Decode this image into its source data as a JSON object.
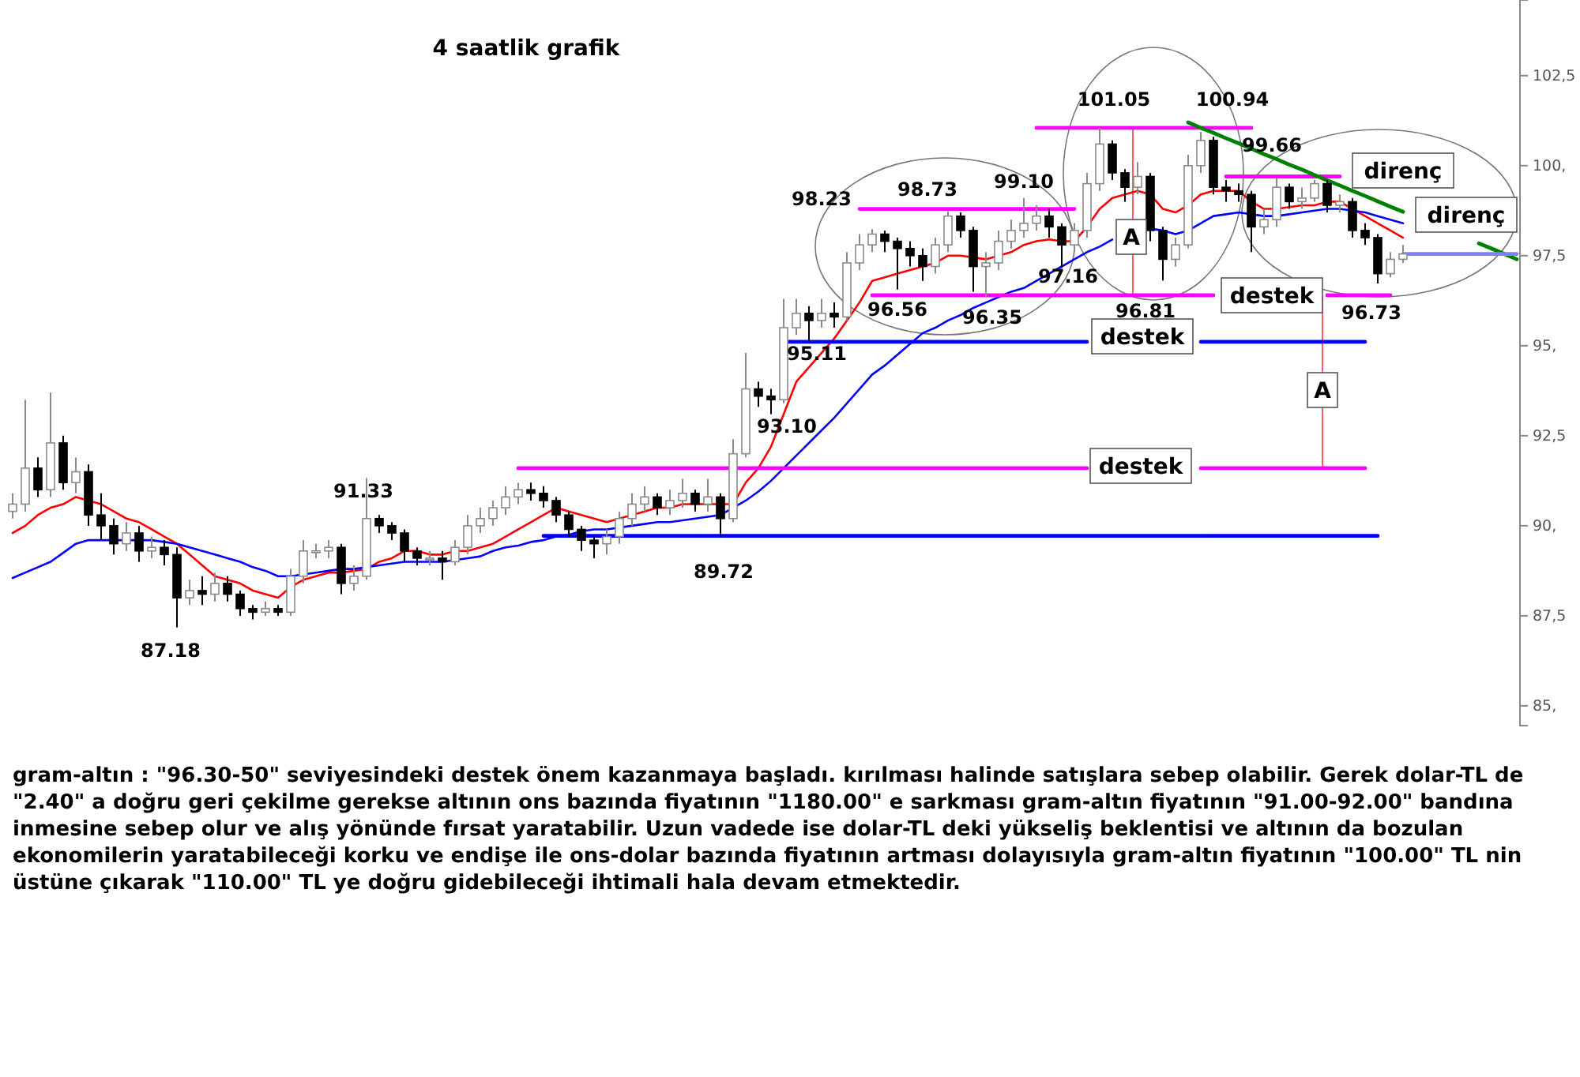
{
  "chart_data": {
    "type": "candlestick",
    "title": "4 saatlik grafik",
    "categories": [
      null,
      null,
      null,
      null,
      null,
      null,
      null,
      null,
      null,
      null,
      null,
      null,
      null,
      null,
      null,
      null,
      null,
      null,
      null,
      null,
      null,
      null,
      null,
      null,
      null,
      null,
      null,
      null,
      null,
      null,
      null,
      null,
      null,
      null,
      null,
      null,
      null,
      null,
      null,
      null,
      null,
      null,
      null,
      null,
      null,
      null,
      null,
      null,
      null,
      null,
      null,
      null,
      null,
      null,
      null,
      null,
      null,
      null,
      null,
      null,
      null,
      null,
      null,
      null,
      null,
      null,
      null,
      null,
      null,
      null,
      null,
      null,
      null,
      null,
      null,
      null,
      null,
      null,
      null,
      null,
      null,
      null,
      null,
      null,
      null,
      null,
      null,
      null,
      null,
      null,
      null,
      null,
      null,
      null,
      null,
      null,
      null,
      null,
      null,
      null,
      null,
      null,
      null,
      null,
      null,
      null,
      null,
      null,
      null,
      null,
      null,
      null,
      null,
      null,
      null,
      null,
      null,
      null,
      null,
      null
    ],
    "ohlc": [
      [
        90.4,
        90.9,
        90.2,
        90.6
      ],
      [
        90.6,
        93.5,
        90.4,
        91.6
      ],
      [
        91.6,
        91.9,
        90.8,
        91.0
      ],
      [
        91.0,
        93.7,
        90.8,
        92.3
      ],
      [
        92.3,
        92.5,
        91.0,
        91.2
      ],
      [
        91.2,
        91.9,
        90.9,
        91.5
      ],
      [
        91.5,
        91.7,
        90.0,
        90.3
      ],
      [
        90.3,
        90.9,
        89.6,
        90.0
      ],
      [
        90.0,
        90.2,
        89.2,
        89.5
      ],
      [
        89.5,
        90.1,
        89.3,
        89.8
      ],
      [
        89.8,
        90.0,
        89.0,
        89.3
      ],
      [
        89.3,
        89.7,
        89.1,
        89.4
      ],
      [
        89.4,
        89.6,
        88.9,
        89.2
      ],
      [
        89.2,
        89.4,
        87.18,
        88.0
      ],
      [
        88.0,
        88.5,
        87.8,
        88.2
      ],
      [
        88.2,
        88.6,
        87.8,
        88.1
      ],
      [
        88.1,
        88.7,
        87.9,
        88.4
      ],
      [
        88.4,
        88.6,
        87.9,
        88.1
      ],
      [
        88.1,
        88.2,
        87.5,
        87.7
      ],
      [
        87.7,
        87.8,
        87.4,
        87.6
      ],
      [
        87.6,
        87.9,
        87.5,
        87.7
      ],
      [
        87.7,
        87.8,
        87.5,
        87.6
      ],
      [
        87.6,
        88.8,
        87.5,
        88.6
      ],
      [
        88.6,
        89.6,
        88.4,
        89.3
      ],
      [
        89.3,
        89.5,
        89.1,
        89.3
      ],
      [
        89.3,
        89.6,
        89.1,
        89.4
      ],
      [
        89.4,
        89.5,
        88.1,
        88.4
      ],
      [
        88.4,
        88.9,
        88.2,
        88.6
      ],
      [
        88.6,
        91.33,
        88.5,
        90.2
      ],
      [
        90.2,
        90.3,
        89.8,
        90.0
      ],
      [
        90.0,
        90.1,
        89.6,
        89.8
      ],
      [
        89.8,
        89.9,
        89.0,
        89.3
      ],
      [
        89.3,
        89.4,
        88.9,
        89.1
      ],
      [
        89.1,
        89.3,
        88.9,
        89.1
      ],
      [
        89.1,
        89.3,
        88.5,
        89.0
      ],
      [
        89.0,
        89.6,
        88.9,
        89.4
      ],
      [
        89.4,
        90.3,
        89.2,
        90.0
      ],
      [
        90.0,
        90.5,
        89.8,
        90.2
      ],
      [
        90.2,
        90.7,
        90.0,
        90.5
      ],
      [
        90.5,
        91.1,
        90.3,
        90.8
      ],
      [
        90.8,
        91.2,
        90.6,
        91.0
      ],
      [
        91.0,
        91.2,
        90.7,
        90.9
      ],
      [
        90.9,
        91.1,
        90.5,
        90.7
      ],
      [
        90.7,
        90.8,
        90.1,
        90.3
      ],
      [
        90.3,
        90.4,
        89.7,
        89.9
      ],
      [
        89.9,
        90.0,
        89.3,
        89.6
      ],
      [
        89.6,
        89.7,
        89.1,
        89.5
      ],
      [
        89.5,
        89.9,
        89.2,
        89.7
      ],
      [
        89.7,
        90.4,
        89.5,
        90.2
      ],
      [
        90.2,
        90.9,
        90.0,
        90.6
      ],
      [
        90.6,
        91.1,
        90.4,
        90.8
      ],
      [
        90.8,
        90.9,
        90.3,
        90.5
      ],
      [
        90.5,
        91.0,
        90.3,
        90.7
      ],
      [
        90.7,
        91.3,
        90.5,
        90.9
      ],
      [
        90.9,
        91.0,
        90.4,
        90.6
      ],
      [
        90.6,
        91.3,
        90.4,
        90.8
      ],
      [
        90.8,
        90.9,
        89.72,
        90.2
      ],
      [
        90.2,
        92.4,
        90.1,
        92.0
      ],
      [
        92.0,
        94.8,
        91.9,
        93.8
      ],
      [
        93.8,
        94.0,
        93.3,
        93.6
      ],
      [
        93.6,
        93.8,
        93.1,
        93.5
      ],
      [
        93.5,
        96.3,
        93.4,
        95.5
      ],
      [
        95.5,
        96.3,
        95.3,
        95.9
      ],
      [
        95.9,
        96.1,
        95.11,
        95.7
      ],
      [
        95.7,
        96.3,
        95.5,
        95.9
      ],
      [
        95.9,
        96.2,
        95.5,
        95.8
      ],
      [
        95.8,
        97.6,
        95.7,
        97.3
      ],
      [
        97.3,
        98.1,
        97.1,
        97.8
      ],
      [
        97.8,
        98.23,
        97.6,
        98.1
      ],
      [
        98.1,
        98.2,
        97.6,
        97.9
      ],
      [
        97.9,
        98.0,
        96.56,
        97.7
      ],
      [
        97.7,
        97.9,
        97.2,
        97.5
      ],
      [
        97.5,
        97.7,
        96.8,
        97.2
      ],
      [
        97.2,
        98.0,
        97.0,
        97.8
      ],
      [
        97.8,
        98.73,
        97.6,
        98.6
      ],
      [
        98.6,
        98.7,
        98.0,
        98.2
      ],
      [
        98.2,
        98.3,
        96.5,
        97.2
      ],
      [
        97.2,
        97.6,
        96.35,
        97.3
      ],
      [
        97.3,
        98.2,
        97.1,
        97.9
      ],
      [
        97.9,
        98.5,
        97.7,
        98.2
      ],
      [
        98.2,
        99.1,
        98.0,
        98.4
      ],
      [
        98.4,
        98.9,
        98.2,
        98.6
      ],
      [
        98.6,
        98.8,
        98.0,
        98.3
      ],
      [
        98.3,
        98.4,
        97.16,
        97.8
      ],
      [
        97.8,
        98.4,
        97.6,
        98.2
      ],
      [
        98.2,
        99.8,
        98.0,
        99.5
      ],
      [
        99.5,
        101.05,
        99.3,
        100.6
      ],
      [
        100.6,
        100.7,
        99.6,
        99.8
      ],
      [
        99.8,
        99.9,
        99.0,
        99.4
      ],
      [
        99.4,
        100.1,
        99.2,
        99.7
      ],
      [
        99.7,
        99.8,
        97.9,
        98.2
      ],
      [
        98.2,
        98.3,
        96.81,
        97.4
      ],
      [
        97.4,
        98.0,
        97.2,
        97.8
      ],
      [
        97.8,
        100.3,
        97.7,
        100.0
      ],
      [
        100.0,
        100.94,
        99.8,
        100.7
      ],
      [
        100.7,
        100.8,
        99.2,
        99.4
      ],
      [
        99.4,
        99.6,
        99.0,
        99.3
      ],
      [
        99.3,
        99.5,
        99.0,
        99.2
      ],
      [
        99.2,
        99.3,
        97.6,
        98.3
      ],
      [
        98.3,
        98.8,
        98.1,
        98.5
      ],
      [
        98.5,
        99.66,
        98.3,
        99.4
      ],
      [
        99.4,
        99.5,
        98.8,
        99.0
      ],
      [
        99.0,
        99.4,
        98.8,
        99.1
      ],
      [
        99.1,
        99.6,
        99.0,
        99.5
      ],
      [
        99.5,
        99.6,
        98.7,
        98.9
      ],
      [
        98.9,
        99.2,
        98.7,
        99.0
      ],
      [
        99.0,
        99.1,
        98.0,
        98.2
      ],
      [
        98.2,
        98.4,
        97.8,
        98.0
      ],
      [
        98.0,
        98.1,
        96.73,
        97.0
      ],
      [
        97.0,
        97.6,
        96.9,
        97.4
      ],
      [
        97.4,
        97.8,
        97.3,
        97.55
      ],
      null,
      null,
      null,
      null,
      null,
      null,
      null,
      null,
      null
    ],
    "series": [
      {
        "type": "line",
        "color": "#ff0000",
        "values": [
          89.8,
          90.0,
          90.3,
          90.5,
          90.6,
          90.8,
          90.7,
          90.6,
          90.4,
          90.2,
          90.1,
          89.9,
          89.7,
          89.5,
          89.2,
          88.9,
          88.6,
          88.5,
          88.4,
          88.2,
          88.1,
          88.0,
          88.3,
          88.5,
          88.6,
          88.7,
          88.7,
          88.75,
          88.8,
          89.0,
          89.1,
          89.3,
          89.3,
          89.2,
          89.2,
          89.3,
          89.3,
          89.4,
          89.5,
          89.7,
          89.9,
          90.1,
          90.3,
          90.5,
          90.4,
          90.3,
          90.2,
          90.1,
          90.2,
          90.3,
          90.4,
          90.5,
          90.5,
          90.6,
          90.6,
          90.6,
          90.6,
          90.6,
          91.2,
          91.6,
          92.2,
          93.1,
          94.0,
          94.4,
          94.8,
          95.2,
          95.7,
          96.2,
          96.8,
          96.9,
          97.0,
          97.1,
          97.2,
          97.3,
          97.5,
          97.5,
          97.45,
          97.4,
          97.5,
          97.6,
          97.8,
          97.9,
          97.95,
          97.9,
          97.9,
          98.3,
          98.8,
          99.1,
          99.2,
          99.3,
          99.2,
          98.8,
          98.7,
          98.9,
          99.2,
          99.3,
          99.3,
          99.3,
          99.0,
          98.8,
          98.8,
          98.85,
          98.9,
          98.9,
          99.0,
          99.0,
          98.8,
          98.6,
          98.4,
          98.2,
          98.0,
          null,
          null,
          null,
          null,
          null,
          null,
          null,
          null,
          null
        ]
      },
      {
        "type": "line",
        "color": "#0000ff",
        "values": [
          88.55,
          88.7,
          88.85,
          89.0,
          89.25,
          89.5,
          89.6,
          89.6,
          89.6,
          89.6,
          89.6,
          89.6,
          89.55,
          89.5,
          89.4,
          89.3,
          89.2,
          89.1,
          89.0,
          88.85,
          88.75,
          88.6,
          88.6,
          88.65,
          88.7,
          88.75,
          88.8,
          88.8,
          88.85,
          88.9,
          88.95,
          89.0,
          89.0,
          89.0,
          89.0,
          89.05,
          89.1,
          89.15,
          89.3,
          89.4,
          89.45,
          89.55,
          89.6,
          89.7,
          89.75,
          89.85,
          89.9,
          89.9,
          89.95,
          90.0,
          90.05,
          90.1,
          90.1,
          90.15,
          90.2,
          90.25,
          90.3,
          90.5,
          90.7,
          90.95,
          91.25,
          91.6,
          91.95,
          92.3,
          92.65,
          93.0,
          93.4,
          93.8,
          94.2,
          94.45,
          94.75,
          95.05,
          95.35,
          95.5,
          95.7,
          95.85,
          96.05,
          96.2,
          96.35,
          96.5,
          96.6,
          96.8,
          97.0,
          97.2,
          97.4,
          97.6,
          97.75,
          97.95,
          null,
          null,
          98.25,
          98.2,
          98.1,
          98.2,
          98.4,
          98.6,
          98.65,
          98.7,
          98.65,
          98.6,
          98.6,
          98.65,
          98.7,
          98.75,
          98.8,
          98.8,
          98.75,
          98.7,
          98.6,
          98.5,
          98.4,
          null,
          null,
          null,
          null,
          null,
          null,
          null,
          null,
          null
        ]
      },
      {
        "type": "line",
        "color": "#ff00ff",
        "values": [
          null,
          null,
          null,
          null,
          null,
          null,
          null,
          null,
          null,
          null,
          null,
          null,
          null,
          null,
          null,
          null,
          null,
          null,
          null,
          null,
          null,
          null,
          null,
          null,
          null,
          null,
          null,
          null,
          null,
          null,
          null,
          null,
          null,
          null,
          null,
          null,
          null,
          null,
          null,
          null,
          91.6,
          91.6,
          91.6,
          91.6,
          91.6,
          91.6,
          91.6,
          91.6,
          91.6,
          91.6,
          91.6,
          91.6,
          91.6,
          91.6,
          91.6,
          91.6,
          91.6,
          91.6,
          91.6,
          91.6,
          91.6,
          91.6,
          91.6,
          91.6,
          91.6,
          91.6,
          91.6,
          91.6,
          91.6,
          91.6,
          91.6,
          91.6,
          91.6,
          91.6,
          91.6,
          91.6,
          91.6,
          91.6,
          91.6,
          91.6,
          91.6,
          91.6,
          91.6,
          91.6,
          91.6,
          91.6,
          null,
          null,
          null,
          null,
          null,
          null,
          null,
          null,
          91.6,
          91.6,
          91.6,
          91.6,
          91.6,
          91.6,
          91.6,
          91.6,
          91.6,
          91.6,
          91.6,
          91.6,
          91.6,
          91.6,
          null,
          null,
          null,
          null,
          null,
          null,
          null,
          null,
          null,
          null,
          null,
          null
        ]
      },
      {
        "type": "line",
        "color": "#0000ff",
        "values": [
          null,
          null,
          null,
          null,
          null,
          null,
          null,
          null,
          null,
          null,
          null,
          null,
          null,
          null,
          null,
          null,
          null,
          null,
          null,
          null,
          null,
          null,
          null,
          null,
          null,
          null,
          null,
          null,
          null,
          null,
          null,
          null,
          null,
          null,
          null,
          null,
          null,
          null,
          null,
          null,
          null,
          null,
          89.72,
          89.72,
          89.72,
          89.72,
          89.72,
          89.72,
          89.72,
          89.72,
          89.72,
          89.72,
          89.72,
          89.72,
          89.72,
          89.72,
          89.72,
          89.72,
          89.72,
          89.72,
          89.72,
          89.72,
          89.72,
          89.72,
          89.72,
          89.72,
          89.72,
          89.72,
          89.72,
          89.72,
          89.72,
          89.72,
          89.72,
          89.72,
          89.72,
          89.72,
          89.72,
          89.72,
          89.72,
          89.72,
          89.72,
          89.72,
          89.72,
          89.72,
          89.72,
          89.72,
          89.72,
          89.72,
          89.72,
          89.72,
          89.72,
          89.72,
          89.72,
          89.72,
          89.72,
          89.72,
          89.72,
          89.72,
          89.72,
          89.72,
          89.72,
          89.72,
          89.72,
          89.72,
          89.72,
          89.72,
          89.72,
          89.72,
          89.72,
          null,
          null,
          null,
          null,
          null,
          null,
          null,
          null,
          null,
          null,
          null
        ]
      },
      {
        "type": "line",
        "color": "#0000ff",
        "values": [
          null,
          null,
          null,
          null,
          null,
          null,
          null,
          null,
          null,
          null,
          null,
          null,
          null,
          null,
          null,
          null,
          null,
          null,
          null,
          null,
          null,
          null,
          null,
          null,
          null,
          null,
          null,
          null,
          null,
          null,
          null,
          null,
          null,
          null,
          null,
          null,
          null,
          null,
          null,
          null,
          null,
          null,
          null,
          null,
          null,
          null,
          null,
          null,
          null,
          null,
          null,
          null,
          null,
          null,
          null,
          null,
          null,
          null,
          null,
          null,
          null,
          95.11,
          95.11,
          95.11,
          95.11,
          95.11,
          95.11,
          95.11,
          95.11,
          95.11,
          95.11,
          95.11,
          95.11,
          95.11,
          95.11,
          95.11,
          95.11,
          95.11,
          95.11,
          95.11,
          95.11,
          95.11,
          95.11,
          95.11,
          95.11,
          95.11,
          null,
          null,
          null,
          null,
          null,
          null,
          null,
          null,
          95.11,
          95.11,
          95.11,
          95.11,
          95.11,
          95.11,
          95.11,
          95.11,
          95.11,
          95.11,
          95.11,
          95.11,
          95.11,
          95.11,
          null,
          null,
          null,
          null,
          null,
          null,
          null,
          null,
          null,
          null,
          null,
          null
        ]
      },
      {
        "type": "line",
        "color": "#ff00ff",
        "values": [
          null,
          null,
          null,
          null,
          null,
          null,
          null,
          null,
          null,
          null,
          null,
          null,
          null,
          null,
          null,
          null,
          null,
          null,
          null,
          null,
          null,
          null,
          null,
          null,
          null,
          null,
          null,
          null,
          null,
          null,
          null,
          null,
          null,
          null,
          null,
          null,
          null,
          null,
          null,
          null,
          null,
          null,
          null,
          null,
          null,
          null,
          null,
          null,
          null,
          null,
          null,
          null,
          null,
          null,
          null,
          null,
          null,
          null,
          null,
          null,
          null,
          null,
          null,
          null,
          null,
          null,
          null,
          null,
          96.4,
          96.4,
          96.4,
          96.4,
          96.4,
          96.4,
          96.4,
          96.4,
          96.4,
          96.4,
          96.4,
          96.4,
          96.4,
          96.4,
          96.4,
          96.4,
          96.4,
          96.4,
          96.4,
          96.4,
          96.4,
          96.4,
          96.4,
          96.4,
          96.4,
          96.4,
          96.4,
          96.4,
          null,
          null,
          null,
          null,
          null,
          null,
          null,
          null,
          96.4,
          96.4,
          96.4,
          96.4,
          96.4,
          96.4,
          null,
          null,
          null,
          null,
          null,
          null,
          null,
          null,
          null,
          null
        ]
      },
      {
        "type": "line",
        "color": "#ff00ff",
        "values": [
          null,
          null,
          null,
          null,
          null,
          null,
          null,
          null,
          null,
          null,
          null,
          null,
          null,
          null,
          null,
          null,
          null,
          null,
          null,
          null,
          null,
          null,
          null,
          null,
          null,
          null,
          null,
          null,
          null,
          null,
          null,
          null,
          null,
          null,
          null,
          null,
          null,
          null,
          null,
          null,
          null,
          null,
          null,
          null,
          null,
          null,
          null,
          null,
          null,
          null,
          null,
          null,
          null,
          null,
          null,
          null,
          null,
          null,
          null,
          null,
          null,
          null,
          null,
          null,
          null,
          null,
          null,
          98.8,
          98.8,
          98.8,
          98.8,
          98.8,
          98.8,
          98.8,
          98.8,
          98.8,
          98.8,
          98.8,
          98.8,
          98.8,
          98.8,
          98.8,
          98.8,
          98.8,
          98.8,
          null,
          null,
          null,
          null,
          null,
          null,
          null,
          null,
          null,
          null,
          null,
          null,
          null,
          null,
          null,
          null,
          null,
          null,
          null,
          null,
          null,
          null,
          null,
          null,
          null,
          null,
          null,
          null,
          null,
          null,
          null,
          null,
          null,
          null,
          null
        ]
      },
      {
        "type": "line",
        "color": "#ff00ff",
        "values": [
          null,
          null,
          null,
          null,
          null,
          null,
          null,
          null,
          null,
          null,
          null,
          null,
          null,
          null,
          null,
          null,
          null,
          null,
          null,
          null,
          null,
          null,
          null,
          null,
          null,
          null,
          null,
          null,
          null,
          null,
          null,
          null,
          null,
          null,
          null,
          null,
          null,
          null,
          null,
          null,
          null,
          null,
          null,
          null,
          null,
          null,
          null,
          null,
          null,
          null,
          null,
          null,
          null,
          null,
          null,
          null,
          null,
          null,
          null,
          null,
          null,
          null,
          null,
          null,
          null,
          null,
          null,
          null,
          null,
          null,
          null,
          null,
          null,
          null,
          null,
          null,
          null,
          null,
          null,
          null,
          null,
          101.05,
          101.05,
          101.05,
          101.05,
          101.05,
          101.05,
          101.05,
          101.05,
          101.05,
          101.05,
          101.05,
          101.05,
          101.05,
          101.05,
          101.05,
          101.05,
          101.05,
          101.05,
          null,
          null,
          null,
          null,
          null,
          null,
          null,
          null,
          null,
          null,
          null,
          null,
          null,
          null,
          null,
          null,
          null,
          null,
          null,
          null,
          null
        ]
      },
      {
        "type": "line",
        "color": "#ff00ff",
        "values": [
          null,
          null,
          null,
          null,
          null,
          null,
          null,
          null,
          null,
          null,
          null,
          null,
          null,
          null,
          null,
          null,
          null,
          null,
          null,
          null,
          null,
          null,
          null,
          null,
          null,
          null,
          null,
          null,
          null,
          null,
          null,
          null,
          null,
          null,
          null,
          null,
          null,
          null,
          null,
          null,
          null,
          null,
          null,
          null,
          null,
          null,
          null,
          null,
          null,
          null,
          null,
          null,
          null,
          null,
          null,
          null,
          null,
          null,
          null,
          null,
          null,
          null,
          null,
          null,
          null,
          null,
          null,
          null,
          null,
          null,
          null,
          null,
          null,
          null,
          null,
          null,
          null,
          null,
          null,
          null,
          null,
          null,
          null,
          null,
          null,
          null,
          null,
          null,
          null,
          null,
          null,
          null,
          null,
          null,
          null,
          null,
          99.7,
          99.7,
          99.7,
          99.7,
          99.7,
          99.7,
          99.7,
          99.7,
          99.7,
          99.7,
          null,
          null,
          null,
          null,
          null,
          null,
          null,
          null,
          null,
          null,
          null,
          null,
          null,
          null
        ]
      },
      {
        "type": "line",
        "color": "#008000",
        "values": [
          null,
          null,
          null,
          null,
          null,
          null,
          null,
          null,
          null,
          null,
          null,
          null,
          null,
          null,
          null,
          null,
          null,
          null,
          null,
          null,
          null,
          null,
          null,
          null,
          null,
          null,
          null,
          null,
          null,
          null,
          null,
          null,
          null,
          null,
          null,
          null,
          null,
          null,
          null,
          null,
          null,
          null,
          null,
          null,
          null,
          null,
          null,
          null,
          null,
          null,
          null,
          null,
          null,
          null,
          null,
          null,
          null,
          null,
          null,
          null,
          null,
          null,
          null,
          null,
          null,
          null,
          null,
          null,
          null,
          null,
          null,
          null,
          null,
          null,
          null,
          null,
          null,
          null,
          null,
          null,
          null,
          null,
          null,
          null,
          null,
          null,
          null,
          null,
          null,
          null,
          null,
          null,
          null,
          101.2,
          101.05,
          100.91,
          100.76,
          100.62,
          100.47,
          100.32,
          100.18,
          100.03,
          99.89,
          99.74,
          99.59,
          99.45,
          99.3,
          99.16,
          99.01,
          98.86,
          98.72,
          null,
          null,
          null,
          null,
          null,
          97.84,
          97.7,
          97.55,
          97.4
        ]
      },
      {
        "type": "line",
        "color": "#8080ff",
        "values": [
          null,
          null,
          null,
          null,
          null,
          null,
          null,
          null,
          null,
          null,
          null,
          null,
          null,
          null,
          null,
          null,
          null,
          null,
          null,
          null,
          null,
          null,
          null,
          null,
          null,
          null,
          null,
          null,
          null,
          null,
          null,
          null,
          null,
          null,
          null,
          null,
          null,
          null,
          null,
          null,
          null,
          null,
          null,
          null,
          null,
          null,
          null,
          null,
          null,
          null,
          null,
          null,
          null,
          null,
          null,
          null,
          null,
          null,
          null,
          null,
          null,
          null,
          null,
          null,
          null,
          null,
          null,
          null,
          null,
          null,
          null,
          null,
          null,
          null,
          null,
          null,
          null,
          null,
          null,
          null,
          null,
          null,
          null,
          null,
          null,
          null,
          null,
          null,
          null,
          null,
          null,
          null,
          null,
          null,
          null,
          null,
          null,
          null,
          null,
          null,
          null,
          null,
          null,
          null,
          null,
          null,
          null,
          null,
          null,
          null,
          97.55,
          97.55,
          97.55,
          97.55,
          97.55,
          97.55,
          97.55,
          97.55,
          97.55,
          97.55
        ]
      }
    ],
    "ylim": [
      84.45,
      104.6
    ],
    "yticks": [
      {
        "value": 85,
        "label": "85,"
      },
      {
        "value": 87.5,
        "label": "87,5"
      },
      {
        "value": 90,
        "label": "90,"
      },
      {
        "value": 92.5,
        "label": "92,5"
      },
      {
        "value": 95,
        "label": "95,"
      },
      {
        "value": 97.5,
        "label": "97,5"
      },
      {
        "value": 100,
        "label": "100,"
      },
      {
        "value": 102.5,
        "label": "102,5"
      }
    ],
    "tick_labels": "y",
    "annotations": [
      "87.18",
      "91.33",
      "89.72",
      "93.10",
      "95.11",
      "98.23",
      "96.56",
      "98.73",
      "96.35",
      "99.10",
      "97.16",
      "101.05",
      "96.81",
      "100.94",
      "99.66",
      "96.73",
      "A",
      "A",
      "destek",
      "destek",
      "destek",
      "direnç",
      "direnç",
      "gram-altın : \"96.30-50\" seviyesindeki destek önem kazanmaya başladı. kırılması halinde satışlara sebep olabilir. Gerek dolar-TL de \"2.40\" a doğru geri çekilme gerekse altının ons bazında fiyatının \"1180.00\" e sarkması gram-altın fiyatının \"91.00-92.00\" bandına inmesine sebep olur ve alış yönünde fırsat yaratabilir. Uzun vadede ise dolar-TL deki yükseliş beklentisi ve altının da bozulan ekonomilerin yaratabileceği korku ve endişe ile ons-dolar bazında fiyatının artması dolayısıyla gram-altın fiyatının \"100.00\" TL nin üstüne çıkarak \"110.00\" TL ye doğru gidebileceği ihtimali hala devam etmektedir."
    ]
  }
}
